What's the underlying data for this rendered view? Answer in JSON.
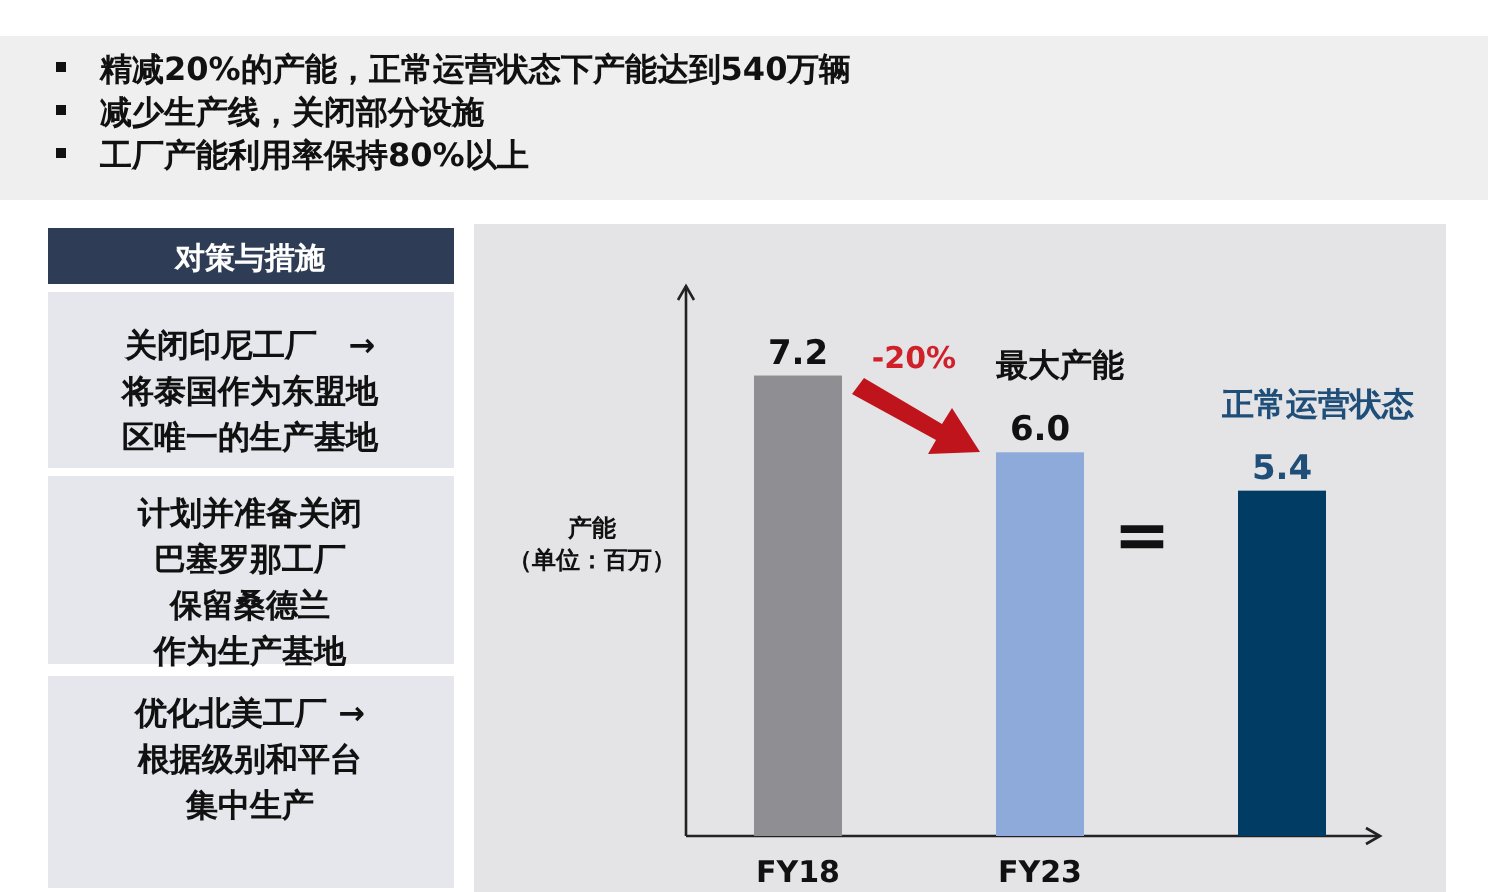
{
  "chart_data": {
    "type": "bar",
    "ylabel": "产能（单位：百万）",
    "categories": [
      "FY18",
      "FY23",
      null
    ],
    "values": [
      7.2,
      6.0,
      5.4
    ],
    "colors": [
      "#8e8e93",
      "#8eaadb",
      "#003c64"
    ],
    "value_labels": [
      "7.2",
      "6.0",
      "5.4"
    ],
    "ylim": [
      0,
      8.6
    ],
    "tick_labels": "x",
    "annotations": [
      "精减20%的产能，正常运营状态下产能达到540万辆",
      "减少生产线，关闭部分设施",
      "工厂产能利用率保持80%以上",
      "对策与措施",
      "关闭印尼工厂　→将泰国作为东盟地区唯一的生产基地",
      "计划并准备关闭巴塞罗那工厂保留桑德兰作为生产基地",
      "优化北美工厂 →根据级别和平台集中生产",
      "-20%",
      {
        "text": "最大产能",
        "x": "FY23",
        "y": 6.0
      },
      {
        "text": "正常运营状态",
        "y": 5.4
      },
      "="
    ]
  }
}
